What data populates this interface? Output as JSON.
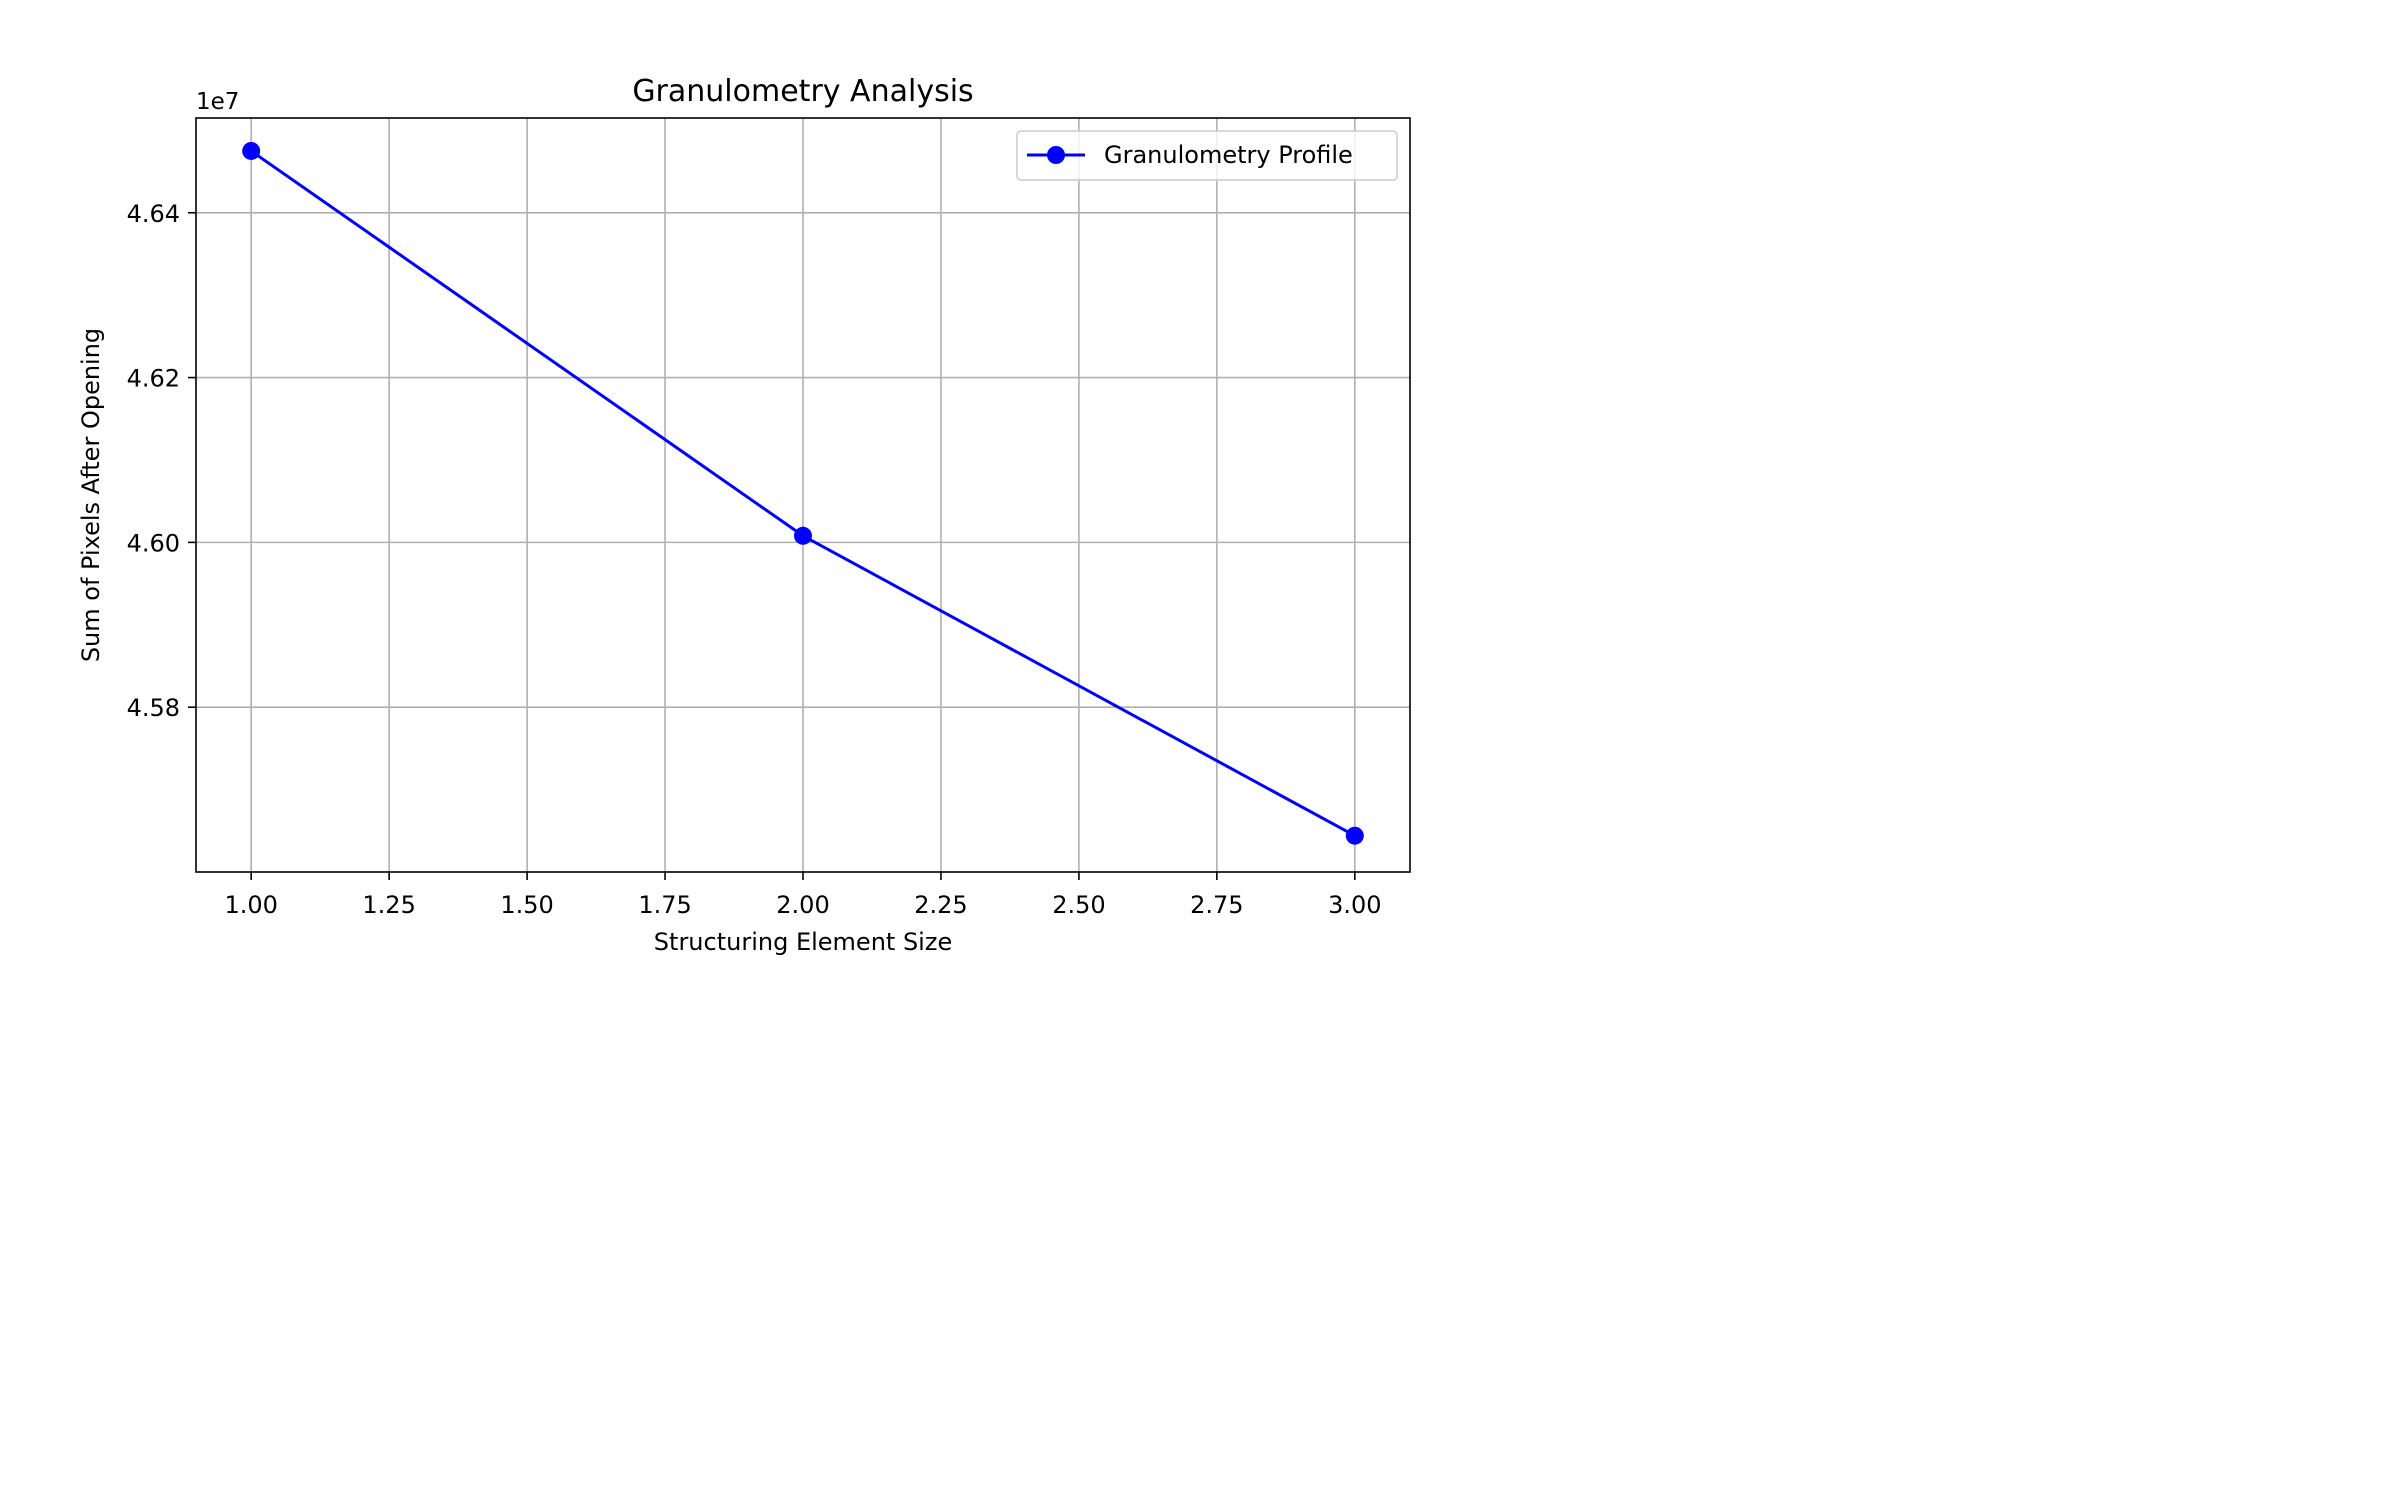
{
  "chart_data": {
    "type": "line",
    "title": "Granulometry Analysis",
    "xlabel": "Structuring Element Size",
    "ylabel": "Sum of Pixels After Opening",
    "y_offset_label": "1e7",
    "xlim": [
      0.9,
      3.1
    ],
    "ylim": [
      45600000.0,
      46515000.0
    ],
    "x_ticks": [
      1.0,
      1.25,
      1.5,
      1.75,
      2.0,
      2.25,
      2.5,
      2.75,
      3.0
    ],
    "x_tick_labels": [
      "1.00",
      "1.25",
      "1.50",
      "1.75",
      "2.00",
      "2.25",
      "2.50",
      "2.75",
      "3.00"
    ],
    "y_ticks": [
      45800000.0,
      46000000.0,
      46200000.0,
      46400000.0
    ],
    "y_tick_labels": [
      "4.58",
      "4.60",
      "4.62",
      "4.64"
    ],
    "grid": true,
    "legend_position": "top-right",
    "series": [
      {
        "name": "Granulometry Profile",
        "color": "#0000ff",
        "marker": "circle",
        "x": [
          1,
          2,
          3
        ],
        "y": [
          46475000,
          46008000,
          45644000
        ]
      }
    ]
  }
}
